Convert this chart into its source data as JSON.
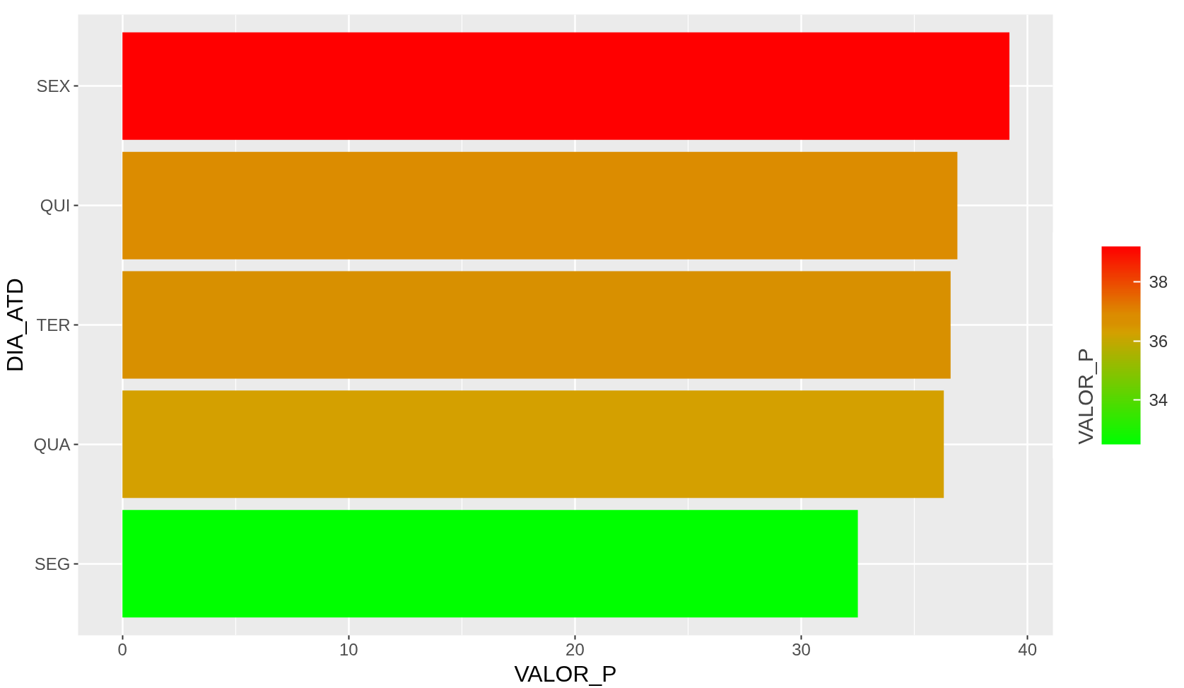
{
  "chart_data": {
    "type": "bar",
    "orientation": "horizontal",
    "xlabel": "VALOR_P",
    "ylabel": "DIA_ATD",
    "clabel": "VALOR_P",
    "categories": [
      "SEX",
      "QUI",
      "TER",
      "QUA",
      "SEG"
    ],
    "values": [
      39.2,
      36.9,
      36.6,
      36.3,
      32.5
    ],
    "colors": [
      "#ff0000",
      "#dc8c00",
      "#d89000",
      "#d4a000",
      "#00ff00"
    ],
    "xlim": [
      -1.96,
      41.12
    ],
    "xticks": [
      0,
      10,
      20,
      30,
      40
    ],
    "clim": [
      32.5,
      39.2
    ],
    "cticks": [
      34,
      36,
      38
    ],
    "grid": true
  }
}
